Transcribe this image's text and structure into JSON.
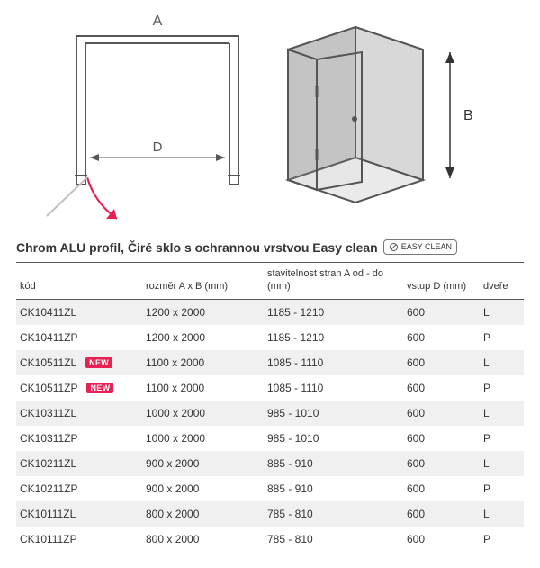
{
  "diagram": {
    "labels": {
      "A": "A",
      "B": "B",
      "D": "D"
    },
    "line_color": "#555555",
    "fill_color": "#b8b8b8",
    "arrow_color": "#e72152",
    "stroke_width": 2
  },
  "title": {
    "text": "Chrom ALU profil, Čiré sklo s ochrannou vrstvou Easy clean",
    "icon_label": "EASY CLEAN"
  },
  "table": {
    "headers": {
      "code": "kód",
      "dimensions": "rozměr A x B (mm)",
      "adjustability": "stavitelnost stran A\nod - do (mm)",
      "entry": "vstup D\n(mm)",
      "door": "dveře"
    },
    "rows": [
      {
        "code": "CK10411ZL",
        "new": false,
        "dim": "1200 x 2000",
        "adj": "1185 - 1210",
        "entry": "600",
        "door": "L"
      },
      {
        "code": "CK10411ZP",
        "new": false,
        "dim": "1200 x 2000",
        "adj": "1185 - 1210",
        "entry": "600",
        "door": "P"
      },
      {
        "code": "CK10511ZL",
        "new": true,
        "dim": "1100  x 2000",
        "adj": "1085 - 1110",
        "entry": "600",
        "door": "L"
      },
      {
        "code": "CK10511ZP",
        "new": true,
        "dim": "1100  x 2000",
        "adj": "1085 - 1110",
        "entry": "600",
        "door": "P"
      },
      {
        "code": "CK10311ZL",
        "new": false,
        "dim": "1000 x 2000",
        "adj": "985 - 1010",
        "entry": "600",
        "door": "L"
      },
      {
        "code": "CK10311ZP",
        "new": false,
        "dim": "1000 x 2000",
        "adj": "985 - 1010",
        "entry": "600",
        "door": "P"
      },
      {
        "code": "CK10211ZL",
        "new": false,
        "dim": "900 x 2000",
        "adj": "885 - 910",
        "entry": "600",
        "door": "L"
      },
      {
        "code": "CK10211ZP",
        "new": false,
        "dim": "900 x 2000",
        "adj": "885 - 910",
        "entry": "600",
        "door": "P"
      },
      {
        "code": "CK10111ZL",
        "new": false,
        "dim": "800 x 2000",
        "adj": "785 - 810",
        "entry": "600",
        "door": "L"
      },
      {
        "code": "CK10111ZP",
        "new": false,
        "dim": "800 x 2000",
        "adj": "785 - 810",
        "entry": "600",
        "door": "P"
      }
    ],
    "zebra_color": "#f0f0f0",
    "border_color": "#555555",
    "new_badge": {
      "text": "NEW",
      "bg": "#e72152",
      "fg": "#ffffff"
    }
  }
}
